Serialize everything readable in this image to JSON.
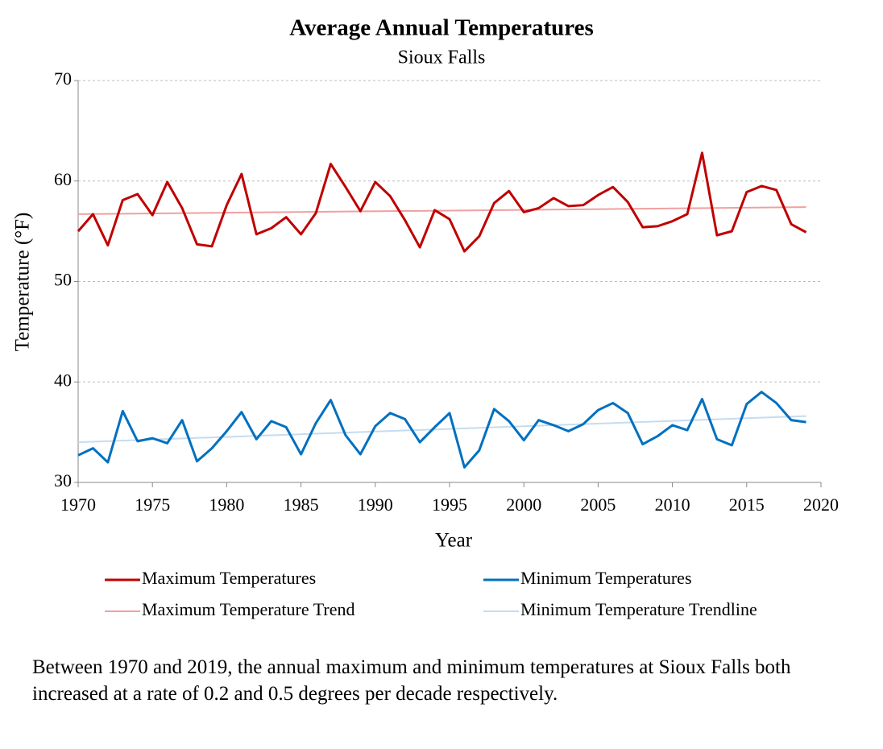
{
  "chart_data": {
    "type": "line",
    "title": "Average Annual Temperatures",
    "subtitle": "Sioux Falls",
    "x_label": "Year",
    "y_label": "Temperature (°F)",
    "x": [
      1970,
      1971,
      1972,
      1973,
      1974,
      1975,
      1976,
      1977,
      1978,
      1979,
      1980,
      1981,
      1982,
      1983,
      1984,
      1985,
      1986,
      1987,
      1988,
      1989,
      1990,
      1991,
      1992,
      1993,
      1994,
      1995,
      1996,
      1997,
      1998,
      1999,
      2000,
      2001,
      2002,
      2003,
      2004,
      2005,
      2006,
      2007,
      2008,
      2009,
      2010,
      2011,
      2012,
      2013,
      2014,
      2015,
      2016,
      2017,
      2018,
      2019
    ],
    "series": [
      {
        "name": "Maximum Temperatures",
        "color": "#c00000",
        "width": 3,
        "values": [
          55.0,
          56.7,
          53.6,
          58.1,
          58.7,
          56.6,
          59.9,
          57.3,
          53.7,
          53.5,
          57.6,
          60.7,
          54.7,
          55.3,
          56.4,
          54.7,
          56.8,
          61.7,
          59.4,
          57.0,
          59.9,
          58.5,
          56.1,
          53.4,
          57.1,
          56.2,
          53.0,
          54.5,
          57.8,
          59.0,
          56.9,
          57.3,
          58.3,
          57.5,
          57.6,
          58.6,
          59.4,
          57.9,
          55.4,
          55.5,
          56.0,
          56.7,
          62.8,
          54.6,
          55.0,
          58.9,
          59.5,
          59.1,
          55.7,
          54.9
        ]
      },
      {
        "name": "Minimum Temperatures",
        "color": "#0070c0",
        "width": 3,
        "values": [
          32.7,
          33.4,
          32.0,
          37.1,
          34.1,
          34.4,
          33.9,
          36.2,
          32.1,
          33.4,
          35.1,
          37.0,
          34.3,
          36.1,
          35.5,
          32.8,
          35.9,
          38.2,
          34.7,
          32.8,
          35.6,
          36.9,
          36.3,
          34.0,
          35.5,
          36.9,
          31.5,
          33.2,
          37.3,
          36.1,
          34.2,
          36.2,
          35.7,
          35.1,
          35.8,
          37.2,
          37.9,
          36.9,
          33.8,
          34.6,
          35.7,
          35.2,
          38.3,
          34.3,
          33.7,
          37.8,
          39.0,
          37.9,
          36.2,
          36.0
        ]
      },
      {
        "name": "Maximum Temperature Trend",
        "color": "#f0a0a0",
        "width": 2,
        "x": [
          1970,
          2019
        ],
        "values": [
          56.7,
          57.4
        ]
      },
      {
        "name": "Minimum Temperature Trendline",
        "color": "#c5dcf0",
        "width": 2,
        "x": [
          1970,
          2019
        ],
        "values": [
          34.0,
          36.6
        ]
      }
    ],
    "xlim": [
      1970,
      2020
    ],
    "xticks": [
      1970,
      1975,
      1980,
      1985,
      1990,
      1995,
      2000,
      2005,
      2010,
      2015,
      2020
    ],
    "ylim": [
      30,
      70
    ],
    "yticks": [
      30,
      40,
      50,
      60,
      70
    ],
    "grid": true,
    "legend": "bottom",
    "caption": "Between 1970 and 2019, the annual maximum and minimum temperatures at Sioux Falls both increased at a rate of 0.2 and 0.5 degrees per decade respectively."
  }
}
